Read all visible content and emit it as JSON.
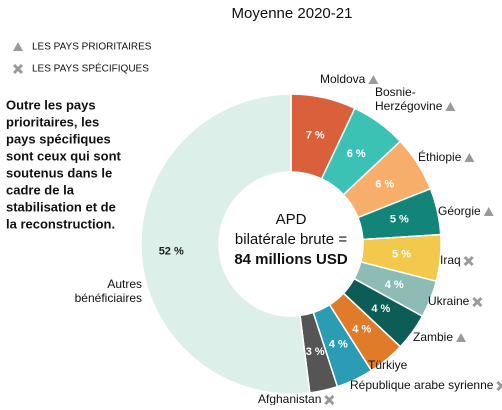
{
  "chart_data": {
    "type": "donut",
    "subtitle": "Moyenne 2020-21",
    "legend": [
      "LES PAYS PRIORITAIRES",
      "LES PAYS SPÉCIFIQUES"
    ],
    "note": [
      "Outre les pays",
      "prioritaires, les",
      "pays spécifiques",
      "sont ceux qui sont",
      "soutenus dans le",
      "cadre de la",
      "stabilisation et de",
      "la reconstruction."
    ],
    "center": [
      "APD",
      "bilatérale brute =",
      "84 millions USD"
    ],
    "categories": [
      [
        "Moldova"
      ],
      [
        "Bosnie-",
        "Herzégovine"
      ],
      [
        "Éthiopie"
      ],
      [
        "Géorgie"
      ],
      [
        "Iraq"
      ],
      [
        "Ukraine"
      ],
      [
        "Zambie"
      ],
      [
        "Türkiye"
      ],
      [
        "République arabe syrienne"
      ],
      [
        "Afghanistan"
      ],
      [
        "Autres",
        "bénéficiaires"
      ]
    ],
    "groups": [
      0,
      0,
      0,
      0,
      1,
      1,
      0,
      null,
      1,
      1,
      null
    ],
    "values": [
      7,
      6,
      6,
      5,
      5,
      4,
      4,
      4,
      4,
      3,
      52
    ],
    "value_labels": [
      "7 %",
      "6 %",
      "6 %",
      "5 %",
      "5 %",
      "4 %",
      "4 %",
      "4 %",
      "4 %",
      "3 %",
      "52 %"
    ],
    "colors": [
      "#d9603b",
      "#3cc2b5",
      "#f8ae6b",
      "#138478",
      "#f2c94c",
      "#8cbcb4",
      "#0d5c55",
      "#e07b2a",
      "#2a9db5",
      "#555555",
      "#dcefe8"
    ]
  }
}
